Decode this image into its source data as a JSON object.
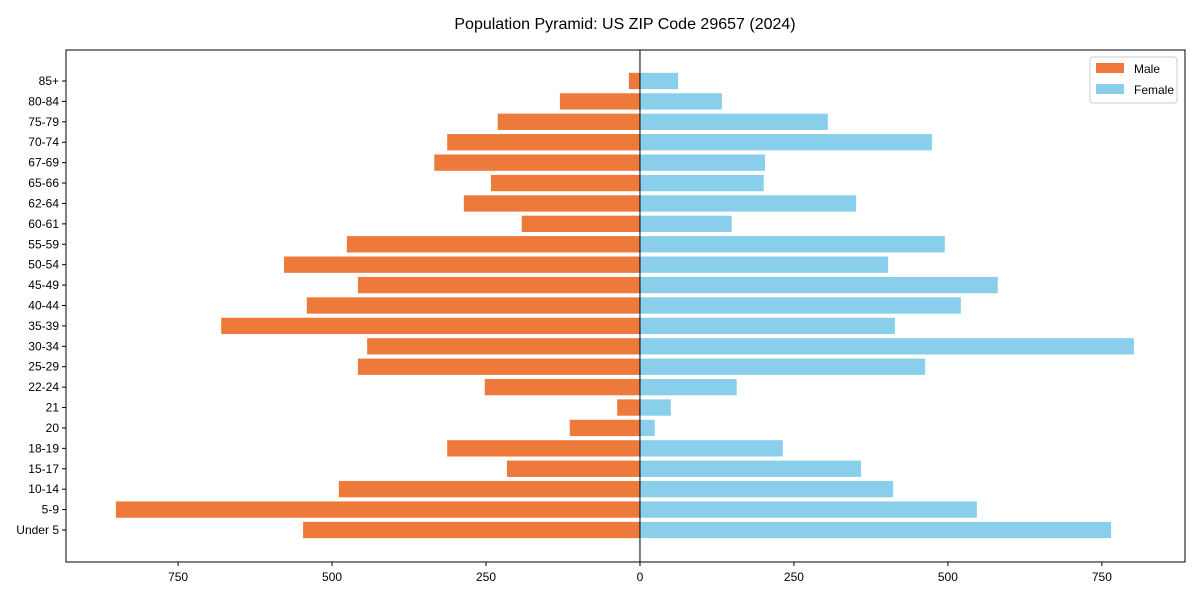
{
  "chart_data": {
    "type": "bar",
    "orientation": "horizontal-pyramid",
    "title": "Population Pyramid: US ZIP Code 29657 (2024)",
    "xlabel": "",
    "ylabel": "",
    "xlim": [
      -932,
      885
    ],
    "xticks": [
      -750,
      -500,
      -250,
      0,
      250,
      500,
      750
    ],
    "xtick_labels": [
      "750",
      "500",
      "250",
      "0",
      "250",
      "500",
      "750"
    ],
    "grid": false,
    "legend_position": "top-right",
    "categories": [
      "Under 5",
      "5-9",
      "10-14",
      "15-17",
      "18-19",
      "20",
      "21",
      "22-24",
      "25-29",
      "30-34",
      "35-39",
      "40-44",
      "45-49",
      "50-54",
      "55-59",
      "60-61",
      "62-64",
      "65-66",
      "67-69",
      "70-74",
      "75-79",
      "80-84",
      "85+"
    ],
    "series": [
      {
        "name": "Male",
        "color": "#ED7A3B",
        "values": [
          547,
          851,
          489,
          216,
          313,
          114,
          37,
          252,
          458,
          443,
          680,
          541,
          458,
          578,
          476,
          192,
          286,
          242,
          334,
          313,
          231,
          130,
          18
        ]
      },
      {
        "name": "Female",
        "color": "#89CFEB",
        "values": [
          765,
          547,
          411,
          359,
          232,
          24,
          50,
          157,
          463,
          802,
          414,
          521,
          581,
          403,
          495,
          149,
          351,
          201,
          203,
          474,
          305,
          133,
          62
        ]
      }
    ]
  }
}
